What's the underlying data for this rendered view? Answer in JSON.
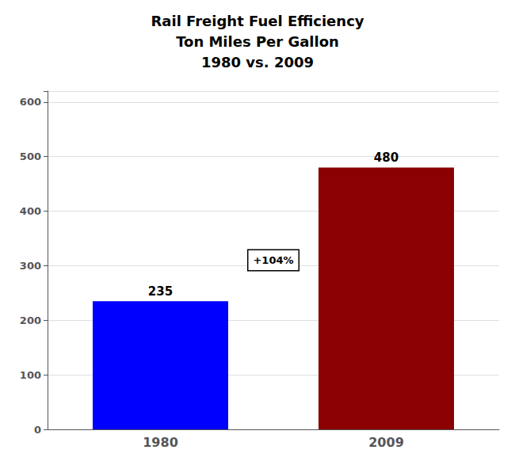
{
  "chart_data": {
    "type": "bar",
    "title": "Rail Freight Fuel Efficiency\nTon Miles Per Gallon\n1980 vs. 2009",
    "categories": [
      "1980",
      "2009"
    ],
    "values": [
      235,
      480
    ],
    "colors": [
      "#0000FF",
      "#8B0000"
    ],
    "ylim": [
      0,
      620
    ],
    "yticks": [
      0,
      100,
      200,
      300,
      400,
      500,
      600
    ],
    "grid": true,
    "data_labels": true,
    "annotations": [
      "+104%"
    ]
  }
}
